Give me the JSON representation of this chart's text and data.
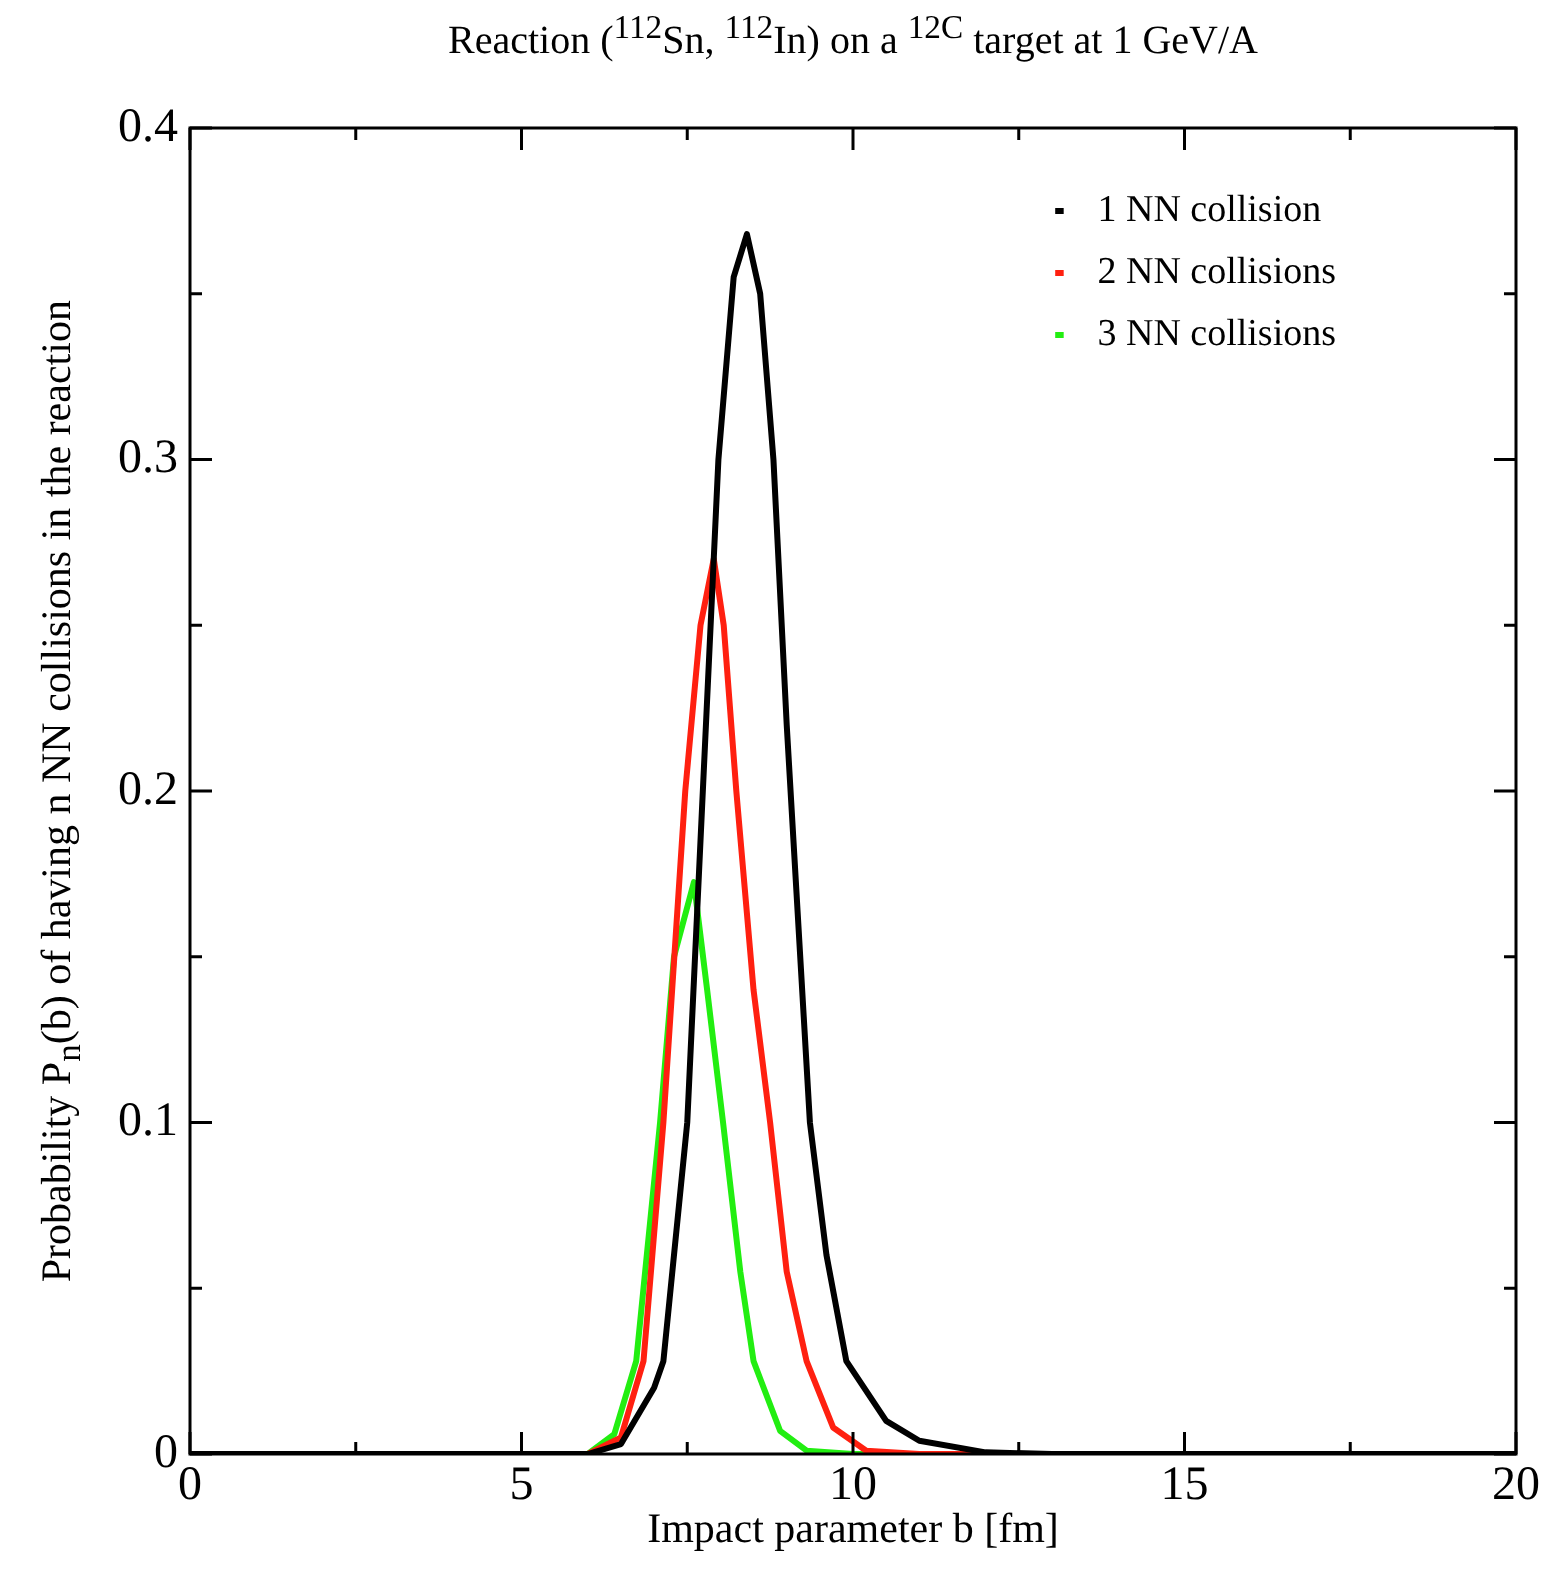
{
  "chart_data": {
    "type": "line",
    "title": "Reaction ($^{112}$Sn, $^{112}$In) on a $^{12C}$ target at 1 GeV/A",
    "xlabel": "Impact parameter b [fm]",
    "ylabel": "Probability P$_{n}$(b) of having n NN collisions in the reaction",
    "xlim": [
      0,
      20
    ],
    "xticks": [
      0,
      {
        "value": 2.5,
        "label": null
      },
      5,
      {
        "value": 7.5,
        "label": null
      },
      10,
      {
        "value": 12.5,
        "label": null
      },
      15,
      {
        "value": 17.5,
        "label": null
      },
      20
    ],
    "ylim": [
      0,
      0.4
    ],
    "yticks": [
      0,
      {
        "value": 0.05,
        "label": null
      },
      0.1,
      {
        "value": 0.15,
        "label": null
      },
      0.2,
      {
        "value": 0.25,
        "label": null
      },
      0.3,
      {
        "value": 0.35,
        "label": null
      },
      0.4
    ],
    "grid": false,
    "legend": "top right",
    "marker": "none",
    "line_style": "solid",
    "series": [
      {
        "name": "1 NN collision",
        "color": "#000000",
        "x": [
          0,
          6,
          6.5,
          7,
          7.14,
          7.5,
          7.97,
          8.2,
          8.4,
          8.6,
          8.8,
          9,
          9.35,
          9.6,
          9.9,
          10.5,
          11,
          12,
          13,
          20
        ],
        "values": [
          0,
          0,
          0.003,
          0.02,
          0.028,
          0.1,
          0.3,
          0.355,
          0.368,
          0.35,
          0.3,
          0.22,
          0.1,
          0.06,
          0.028,
          0.01,
          0.004,
          0.0005,
          0,
          0
        ]
      },
      {
        "name": "2 NN collisions",
        "color": "#ff2010",
        "x": [
          0,
          6,
          6.5,
          6.84,
          7.14,
          7.47,
          7.7,
          7.9,
          8.05,
          8.24,
          8.5,
          8.75,
          9,
          9.3,
          9.7,
          10.2,
          11,
          20
        ],
        "values": [
          0,
          0,
          0.005,
          0.028,
          0.1,
          0.2,
          0.25,
          0.27,
          0.25,
          0.2,
          0.14,
          0.1,
          0.055,
          0.028,
          0.008,
          0.001,
          0,
          0
        ]
      },
      {
        "name": "3 NN collisions",
        "color": "#22ee11",
        "x": [
          0,
          6,
          6.4,
          6.73,
          7.09,
          7.3,
          7.6,
          7.8,
          8.04,
          8.3,
          8.5,
          8.9,
          9.3,
          10,
          20
        ],
        "values": [
          0,
          0,
          0.006,
          0.028,
          0.1,
          0.15,
          0.1725,
          0.14,
          0.1,
          0.055,
          0.028,
          0.007,
          0.001,
          0,
          0
        ]
      }
    ]
  }
}
